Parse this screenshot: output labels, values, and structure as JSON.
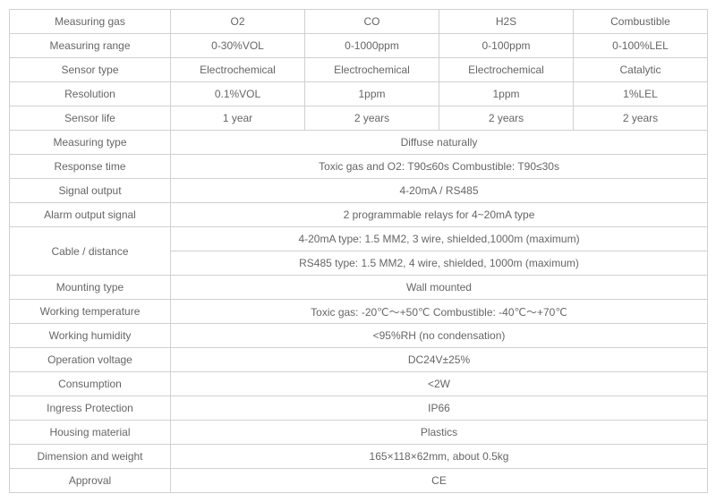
{
  "table": {
    "text_color": "#666666",
    "border_color": "#d0d0d0",
    "font_size": 12,
    "rows": [
      {
        "label": "Measuring gas",
        "cells": [
          "O2",
          "CO",
          "H2S",
          "Combustible"
        ]
      },
      {
        "label": "Measuring range",
        "cells": [
          "0-30%VOL",
          "0-1000ppm",
          "0-100ppm",
          "0-100%LEL"
        ]
      },
      {
        "label": "Sensor type",
        "cells": [
          "Electrochemical",
          "Electrochemical",
          "Electrochemical",
          "Catalytic"
        ]
      },
      {
        "label": "Resolution",
        "cells": [
          "0.1%VOL",
          "1ppm",
          "1ppm",
          "1%LEL"
        ]
      },
      {
        "label": "Sensor life",
        "cells": [
          "1 year",
          "2 years",
          "2 years",
          "2 years"
        ]
      },
      {
        "label": "Measuring type",
        "merged": "Diffuse naturally"
      },
      {
        "label": "Response time",
        "merged": "Toxic gas and O2: T90≤60s        Combustible: T90≤30s"
      },
      {
        "label": "Signal output",
        "merged": "4-20mA / RS485"
      },
      {
        "label": "Alarm output signal",
        "merged": "2 programmable relays for 4~20mA type"
      },
      {
        "label": "Cable / distance",
        "merged_lines": [
          "4-20mA type: 1.5 MM2, 3 wire, shielded,1000m (maximum)",
          "RS485 type: 1.5 MM2, 4 wire, shielded, 1000m (maximum)"
        ]
      },
      {
        "label": "Mounting type",
        "merged": "Wall mounted"
      },
      {
        "label": "Working temperature",
        "merged": "Toxic gas: -20℃～+50℃     Combustible: -40℃～+70℃"
      },
      {
        "label": "Working humidity",
        "merged": "<95%RH (no condensation)"
      },
      {
        "label": "Operation voltage",
        "merged": "DC24V±25%"
      },
      {
        "label": "Consumption",
        "merged": "<2W"
      },
      {
        "label": "Ingress Protection",
        "merged": "IP66"
      },
      {
        "label": "Housing material",
        "merged": "Plastics"
      },
      {
        "label": "Dimension and weight",
        "merged": "165×118×62mm, about 0.5kg"
      },
      {
        "label": "Approval",
        "merged": "CE"
      }
    ]
  }
}
